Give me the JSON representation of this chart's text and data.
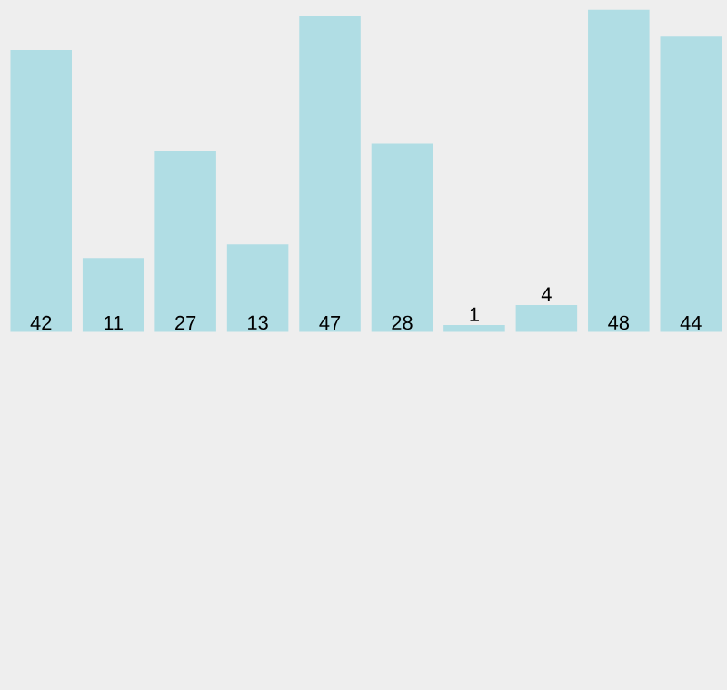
{
  "chart_data": {
    "type": "bar",
    "categories": [
      null,
      null,
      null,
      null,
      null,
      null,
      null,
      null,
      null,
      null
    ],
    "values": [
      42,
      11,
      27,
      13,
      47,
      28,
      1,
      4,
      48,
      44
    ],
    "color": "#b0dde4",
    "data_labels": true
  }
}
